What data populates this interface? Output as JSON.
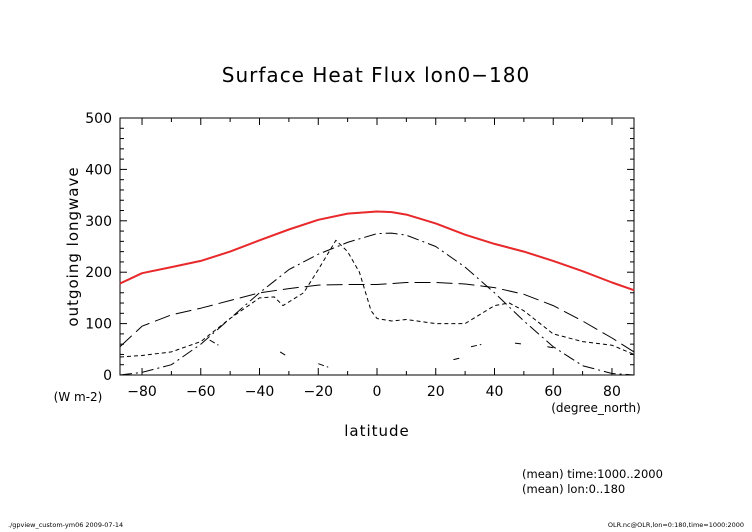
{
  "chart_data": {
    "type": "line",
    "title": "Surface Heat Flux lon0−180",
    "ylabel": "outgoing longwave",
    "yunits": "(W m-2)",
    "xlabel": "latitude",
    "xunits": "(degree_north)",
    "xlim": [
      -87.5,
      87.5
    ],
    "ylim": [
      0,
      500
    ],
    "xticks": [
      -80,
      -60,
      -40,
      -20,
      0,
      20,
      40,
      60,
      80
    ],
    "yticks": [
      0,
      100,
      200,
      300,
      400,
      500
    ],
    "notes": [
      "(mean) time:1000..2000",
      "(mean) lon:0..180"
    ],
    "series": [
      {
        "style": "solid",
        "color": "#e8282a",
        "x": [
          -87.5,
          -80,
          -70,
          -60,
          -50,
          -40,
          -30,
          -20,
          -10,
          0,
          5,
          10,
          20,
          30,
          40,
          50,
          60,
          70,
          80,
          87.5
        ],
        "y": [
          178,
          198,
          210,
          222,
          240,
          262,
          283,
          302,
          314,
          318,
          317,
          312,
          295,
          273,
          255,
          240,
          222,
          202,
          180,
          165
        ]
      },
      {
        "style": "long-dash",
        "color": "#000000",
        "x": [
          -87.5,
          -80,
          -70,
          -60,
          -50,
          -40,
          -30,
          -20,
          -10,
          0,
          10,
          20,
          30,
          40,
          50,
          60,
          70,
          80,
          87.5
        ],
        "y": [
          55,
          95,
          117,
          130,
          145,
          160,
          168,
          175,
          176,
          176,
          180,
          180,
          177,
          170,
          157,
          135,
          105,
          72,
          45
        ]
      },
      {
        "style": "dash-dot",
        "color": "#000000",
        "x": [
          -87.5,
          -80,
          -70,
          -60,
          -50,
          -40,
          -30,
          -20,
          -10,
          0,
          5,
          10,
          20,
          30,
          40,
          50,
          60,
          70,
          80,
          87.5
        ],
        "y": [
          0,
          5,
          20,
          60,
          110,
          160,
          205,
          235,
          258,
          275,
          276,
          272,
          250,
          210,
          160,
          105,
          55,
          18,
          3,
          0
        ]
      },
      {
        "style": "short-dash",
        "color": "#000000",
        "x": [
          -87.5,
          -80,
          -70,
          -60,
          -50,
          -40,
          -35,
          -32,
          -25,
          -20,
          -14,
          -10,
          -6,
          -2,
          0,
          5,
          10,
          20,
          30,
          40,
          45,
          50,
          60,
          70,
          80,
          87.5
        ],
        "y": [
          35,
          38,
          45,
          65,
          110,
          150,
          152,
          135,
          160,
          205,
          262,
          240,
          200,
          125,
          110,
          105,
          108,
          100,
          100,
          135,
          140,
          125,
          80,
          65,
          58,
          40
        ]
      },
      {
        "style": "dash-dot-dot",
        "color": "#000000",
        "segments": [
          {
            "x": [
              -57,
              -54
            ],
            "y": [
              68,
              58
            ]
          },
          {
            "x": [
              -33,
              -31
            ],
            "y": [
              45,
              38
            ]
          },
          {
            "x": [
              -20,
              -16
            ],
            "y": [
              22,
              14
            ]
          },
          {
            "x": [
              26,
              29
            ],
            "y": [
              30,
              34
            ]
          },
          {
            "x": [
              32,
              36
            ],
            "y": [
              55,
              60
            ]
          },
          {
            "x": [
              47,
              50
            ],
            "y": [
              62,
              60
            ]
          },
          {
            "x": [
              58,
              61
            ],
            "y": [
              55,
              52
            ]
          }
        ]
      }
    ]
  },
  "footer": {
    "left": "./gpview_custom-ym06   2009-07-14",
    "right": "OLR.nc@OLR,lon=0:180,time=1000:2000"
  }
}
